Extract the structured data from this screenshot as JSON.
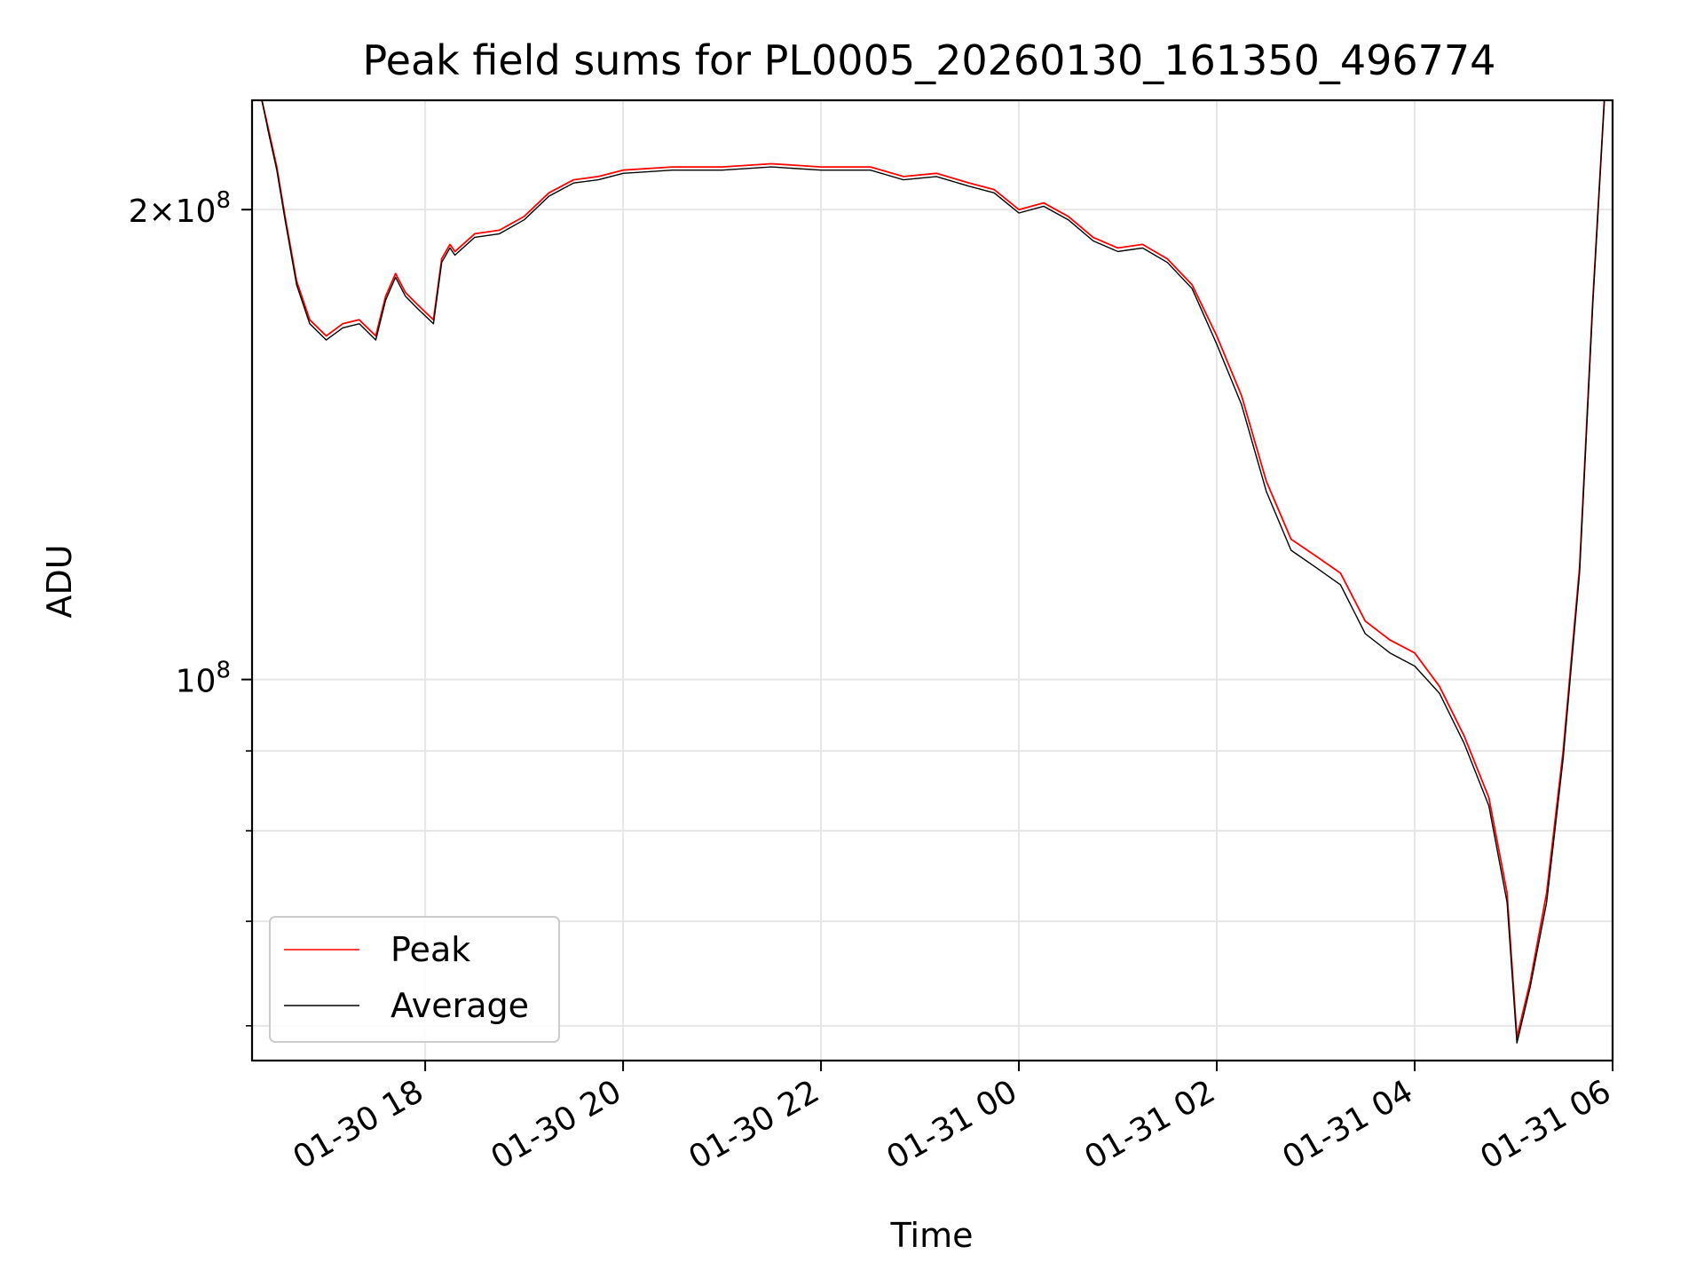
{
  "chart_data": {
    "type": "line",
    "title": "Peak field sums for PL0005_20260130_161350_496774",
    "xlabel": "Time",
    "ylabel": "ADU",
    "y_scale": "log",
    "grid": true,
    "legend_position": "lower-left",
    "xlim": [
      "2026-01-30 16:15",
      "2026-01-31 06:00"
    ],
    "ylim": [
      57000000,
      235000000
    ],
    "x_ticks": [
      "01-30 18",
      "01-30 20",
      "01-30 22",
      "01-31 00",
      "01-31 02",
      "01-31 04",
      "01-31 06"
    ],
    "x_tick_times": [
      "2026-01-30 18:00",
      "2026-01-30 20:00",
      "2026-01-30 22:00",
      "2026-01-31 00:00",
      "2026-01-31 02:00",
      "2026-01-31 04:00",
      "2026-01-31 06:00"
    ],
    "y_major_ticks": [
      {
        "value": 100000000,
        "label": "10^8"
      },
      {
        "value": 200000000,
        "label": "2×10^8"
      }
    ],
    "y_minor_ticks": [
      60000000,
      70000000,
      80000000,
      90000000
    ],
    "colors": {
      "peak": "#ff0000",
      "average": "#000000",
      "grid": "#e6e6e6"
    },
    "series": [
      {
        "name": "Peak",
        "color": "#ff0000",
        "x": [
          "2026-01-30 16:21",
          "2026-01-30 16:25",
          "2026-01-30 16:30",
          "2026-01-30 16:35",
          "2026-01-30 16:42",
          "2026-01-30 16:50",
          "2026-01-30 17:00",
          "2026-01-30 17:10",
          "2026-01-30 17:20",
          "2026-01-30 17:30",
          "2026-01-30 17:36",
          "2026-01-30 17:42",
          "2026-01-30 17:48",
          "2026-01-30 17:55",
          "2026-01-30 18:05",
          "2026-01-30 18:10",
          "2026-01-30 18:15",
          "2026-01-30 18:18",
          "2026-01-30 18:30",
          "2026-01-30 18:45",
          "2026-01-30 19:00",
          "2026-01-30 19:15",
          "2026-01-30 19:30",
          "2026-01-30 19:45",
          "2026-01-30 20:00",
          "2026-01-30 20:30",
          "2026-01-30 21:00",
          "2026-01-30 21:30",
          "2026-01-30 22:00",
          "2026-01-30 22:30",
          "2026-01-30 22:50",
          "2026-01-30 23:10",
          "2026-01-30 23:30",
          "2026-01-30 23:45",
          "2026-01-31 00:00",
          "2026-01-31 00:15",
          "2026-01-31 00:30",
          "2026-01-31 00:45",
          "2026-01-31 01:00",
          "2026-01-31 01:15",
          "2026-01-31 01:30",
          "2026-01-31 01:45",
          "2026-01-31 02:00",
          "2026-01-31 02:15",
          "2026-01-31 02:30",
          "2026-01-31 02:45",
          "2026-01-31 03:00",
          "2026-01-31 03:15",
          "2026-01-31 03:30",
          "2026-01-31 03:45",
          "2026-01-31 04:00",
          "2026-01-31 04:15",
          "2026-01-31 04:30",
          "2026-01-31 04:45",
          "2026-01-31 04:56",
          "2026-01-31 05:02",
          "2026-01-31 05:10",
          "2026-01-31 05:20",
          "2026-01-31 05:30",
          "2026-01-31 05:40",
          "2026-01-31 05:48",
          "2026-01-31 05:55"
        ],
        "values": [
          235000000,
          225000000,
          213000000,
          198000000,
          180000000,
          170000000,
          166000000,
          169000000,
          170000000,
          166000000,
          176000000,
          182000000,
          177000000,
          174000000,
          170000000,
          186000000,
          190000000,
          188000000,
          193000000,
          194000000,
          198000000,
          205000000,
          209000000,
          210000000,
          212000000,
          213000000,
          213000000,
          214000000,
          213000000,
          213000000,
          210000000,
          211000000,
          208000000,
          206000000,
          200000000,
          202000000,
          198000000,
          192000000,
          189000000,
          190000000,
          186000000,
          179000000,
          166000000,
          152000000,
          134000000,
          123000000,
          120000000,
          117000000,
          109000000,
          106000000,
          104000000,
          99000000,
          92000000,
          84000000,
          73000000,
          59000000,
          64000000,
          73000000,
          90000000,
          118000000,
          175000000,
          235000000
        ]
      },
      {
        "name": "Average",
        "color": "#000000",
        "x": [
          "2026-01-30 16:21",
          "2026-01-30 16:25",
          "2026-01-30 16:30",
          "2026-01-30 16:35",
          "2026-01-30 16:42",
          "2026-01-30 16:50",
          "2026-01-30 17:00",
          "2026-01-30 17:10",
          "2026-01-30 17:20",
          "2026-01-30 17:30",
          "2026-01-30 17:36",
          "2026-01-30 17:42",
          "2026-01-30 17:48",
          "2026-01-30 17:55",
          "2026-01-30 18:05",
          "2026-01-30 18:10",
          "2026-01-30 18:15",
          "2026-01-30 18:18",
          "2026-01-30 18:30",
          "2026-01-30 18:45",
          "2026-01-30 19:00",
          "2026-01-30 19:15",
          "2026-01-30 19:30",
          "2026-01-30 19:45",
          "2026-01-30 20:00",
          "2026-01-30 20:30",
          "2026-01-30 21:00",
          "2026-01-30 21:30",
          "2026-01-30 22:00",
          "2026-01-30 22:30",
          "2026-01-30 22:50",
          "2026-01-30 23:10",
          "2026-01-30 23:30",
          "2026-01-30 23:45",
          "2026-01-31 00:00",
          "2026-01-31 00:15",
          "2026-01-31 00:30",
          "2026-01-31 00:45",
          "2026-01-31 01:00",
          "2026-01-31 01:15",
          "2026-01-31 01:30",
          "2026-01-31 01:45",
          "2026-01-31 02:00",
          "2026-01-31 02:15",
          "2026-01-31 02:30",
          "2026-01-31 02:45",
          "2026-01-31 03:00",
          "2026-01-31 03:15",
          "2026-01-31 03:30",
          "2026-01-31 03:45",
          "2026-01-31 04:00",
          "2026-01-31 04:15",
          "2026-01-31 04:30",
          "2026-01-31 04:45",
          "2026-01-31 04:56",
          "2026-01-31 05:02",
          "2026-01-31 05:10",
          "2026-01-31 05:20",
          "2026-01-31 05:30",
          "2026-01-31 05:40",
          "2026-01-31 05:48",
          "2026-01-31 05:55"
        ],
        "values": [
          235000000,
          224000000,
          212000000,
          197000000,
          179000000,
          169000000,
          165000000,
          168000000,
          169000000,
          165000000,
          175000000,
          181000000,
          176000000,
          173000000,
          169000000,
          185000000,
          189000000,
          187000000,
          192000000,
          193000000,
          197000000,
          204000000,
          208000000,
          209000000,
          211000000,
          212000000,
          212000000,
          213000000,
          212000000,
          212000000,
          209000000,
          210000000,
          207000000,
          205000000,
          199000000,
          201000000,
          197000000,
          191000000,
          188000000,
          189000000,
          185000000,
          178000000,
          164000000,
          150000000,
          132000000,
          121000000,
          118000000,
          115000000,
          107000000,
          104000000,
          102000000,
          98000000,
          91000000,
          83000000,
          72000000,
          58500000,
          63500000,
          72000000,
          89000000,
          117000000,
          174000000,
          235000000
        ]
      }
    ]
  }
}
